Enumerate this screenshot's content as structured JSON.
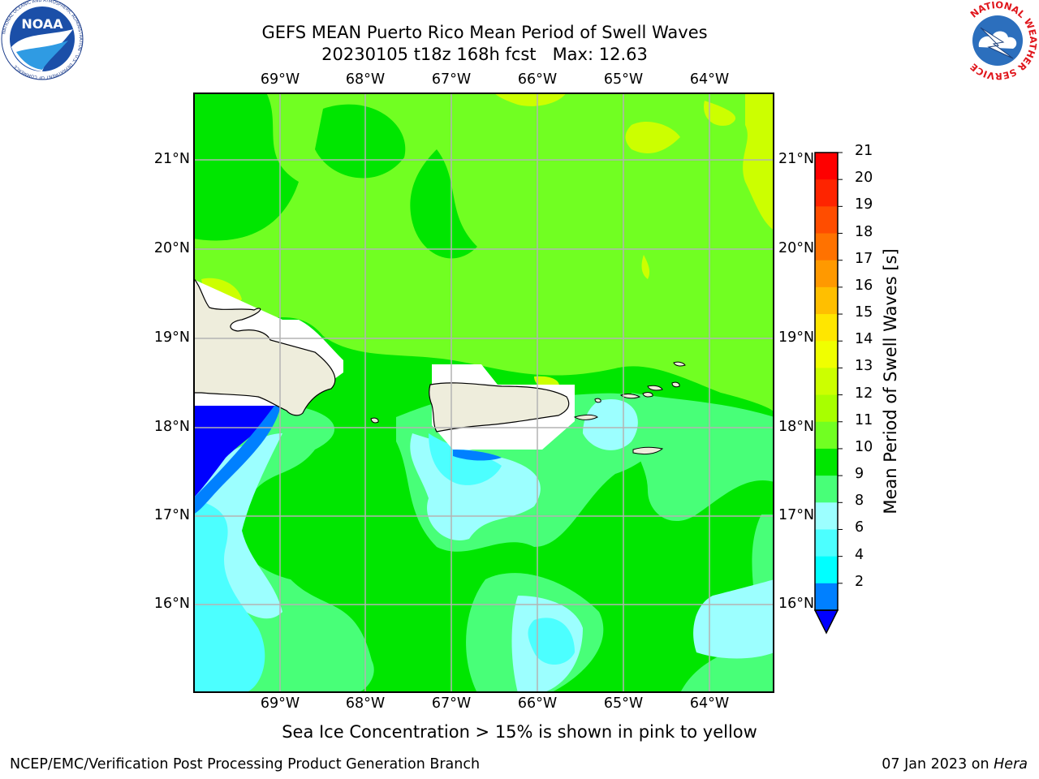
{
  "title": {
    "line1": "GEFS MEAN Puerto Rico Mean Period of Swell Waves",
    "line2": "20230105 t18z 168h fcst   Max: 12.63"
  },
  "map": {
    "lon_labels": [
      "69°W",
      "68°W",
      "67°W",
      "66°W",
      "65°W",
      "64°W"
    ],
    "lat_labels": [
      "21°N",
      "20°N",
      "19°N",
      "18°N",
      "17°N",
      "16°N"
    ],
    "colors": {
      "land": "#eeeddc",
      "grid": "#b3b3b3",
      "coast": "#000000"
    }
  },
  "colorbar": {
    "label": "Mean Period of Swell Waves [s]",
    "ticks": [
      "21",
      "20",
      "19",
      "18",
      "17",
      "16",
      "15",
      "14",
      "13",
      "12",
      "11",
      "10",
      "9",
      "8",
      "6",
      "4",
      "2"
    ],
    "colors": [
      "#fe0000",
      "#fe2400",
      "#ff4d00",
      "#ff7200",
      "#ff9900",
      "#ffbf00",
      "#ffe600",
      "#f0ff00",
      "#ccff00",
      "#a8ff00",
      "#71ff22",
      "#00e600",
      "#48ff78",
      "#9cffff",
      "#4cffff",
      "#00ffff",
      "#0080ff",
      "#0000ff"
    ]
  },
  "footnote": "Sea Ice Concentration > 15% is shown in pink to yellow",
  "footer": {
    "left": "NCEP/EMC/Verification Post Processing Product Generation Branch",
    "date": "07 Jan 2023 on ",
    "host": "Hera"
  },
  "logos": {
    "noaa_text": "NOAA",
    "noaa_ring": "NATIONAL OCEANIC AND ATMOSPHERIC ADMINISTRATION · U.S. DEPARTMENT OF COMMERCE",
    "nws_ring": "NATIONAL WEATHER SERVICE"
  }
}
